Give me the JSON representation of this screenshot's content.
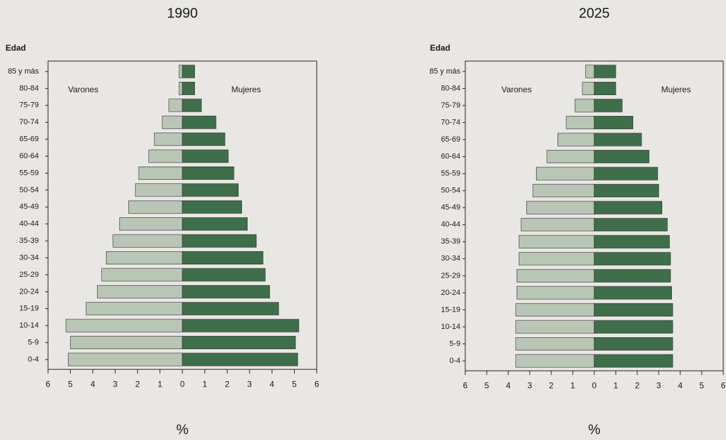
{
  "chart_data": [
    {
      "type": "pyramid",
      "title": "1990",
      "y_label": "Edad",
      "x_label": "%",
      "categories": [
        "85 y más",
        "80-84",
        "75-79",
        "70-74",
        "65-69",
        "60-64",
        "55-59",
        "50-54",
        "45-49",
        "40-44",
        "35-39",
        "30-34",
        "25-29",
        "20-24",
        "15-19",
        "10-14",
        "5-9",
        "0-4"
      ],
      "series": [
        {
          "name": "Varones",
          "color": "#b9c6b6",
          "values": [
            0.15,
            0.15,
            0.6,
            0.9,
            1.25,
            1.5,
            1.95,
            2.1,
            2.4,
            2.8,
            3.1,
            3.4,
            3.6,
            3.8,
            4.3,
            5.2,
            5.0,
            5.1
          ]
        },
        {
          "name": "Mujeres",
          "color": "#3f6e4b",
          "values": [
            0.55,
            0.55,
            0.85,
            1.5,
            1.9,
            2.05,
            2.3,
            2.5,
            2.65,
            2.9,
            3.3,
            3.6,
            3.7,
            3.9,
            4.3,
            5.2,
            5.05,
            5.15
          ]
        }
      ],
      "xlim": [
        -6,
        6
      ],
      "xticks": [
        {
          "value": -6,
          "label": "6"
        },
        {
          "value": -5,
          "label": "5"
        },
        {
          "value": -4,
          "label": "4"
        },
        {
          "value": -3,
          "label": "3"
        },
        {
          "value": -2,
          "label": "2"
        },
        {
          "value": -1,
          "label": "1"
        },
        0,
        1,
        2,
        3,
        4,
        5,
        6
      ]
    },
    {
      "type": "pyramid",
      "title": "2025",
      "y_label": "Edad",
      "x_label": "%",
      "categories": [
        "85 y más",
        "80-84",
        "75-79",
        "70-74",
        "65-69",
        "60-64",
        "55-59",
        "50-54",
        "45-49",
        "40-44",
        "35-39",
        "30-34",
        "25-29",
        "20-24",
        "15-19",
        "10-14",
        "5-9",
        "0-4"
      ],
      "series": [
        {
          "name": "Varones",
          "color": "#b9c6b6",
          "values": [
            0.4,
            0.55,
            0.9,
            1.3,
            1.7,
            2.2,
            2.7,
            2.85,
            3.15,
            3.4,
            3.5,
            3.5,
            3.6,
            3.6,
            3.65,
            3.65,
            3.65,
            3.65
          ]
        },
        {
          "name": "Mujeres",
          "color": "#3f6e4b",
          "values": [
            1.0,
            1.0,
            1.3,
            1.8,
            2.2,
            2.55,
            2.95,
            3.0,
            3.15,
            3.4,
            3.5,
            3.55,
            3.55,
            3.6,
            3.65,
            3.65,
            3.65,
            3.65
          ]
        }
      ],
      "xlim": [
        -6,
        6
      ],
      "xticks": [
        {
          "value": -6,
          "label": "6"
        },
        {
          "value": -5,
          "label": "5"
        },
        {
          "value": -4,
          "label": "4"
        },
        {
          "value": -3,
          "label": "3"
        },
        {
          "value": -2,
          "label": "2"
        },
        {
          "value": -1,
          "label": "1"
        },
        0,
        1,
        2,
        3,
        4,
        5,
        6
      ]
    }
  ]
}
